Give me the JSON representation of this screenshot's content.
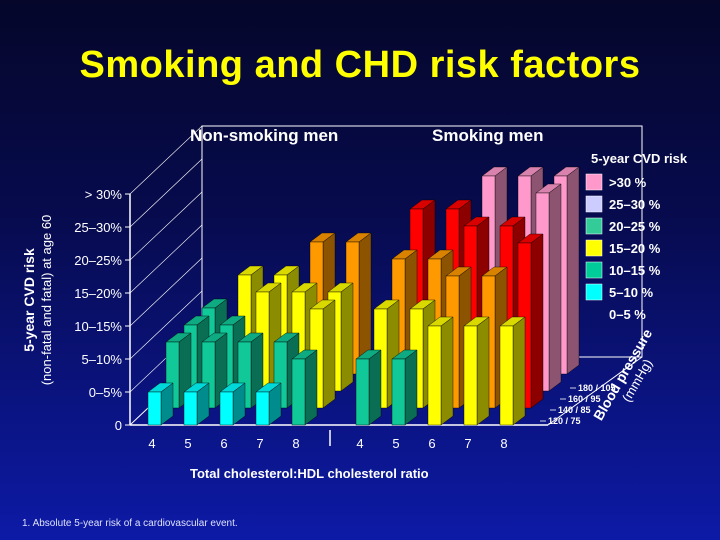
{
  "slide": {
    "title": "Smoking and CHD risk factors",
    "footnote": "1. Absolute 5-year risk of a cardiovascular event."
  },
  "chart_data": {
    "type": "bar",
    "title": "",
    "groups": [
      "Non-smoking men",
      "Smoking men"
    ],
    "xlabel": "Total cholesterol:HDL cholesterol ratio",
    "ylabel": "5-year CVD risk",
    "ylabel_sub": "(non-fatal and fatal) at age 60",
    "categories": [
      "4",
      "5",
      "6",
      "7",
      "8"
    ],
    "y_levels": [
      "0",
      "0–5%",
      "5–10%",
      "10–15%",
      "15–20%",
      "20–25%",
      "25–30%",
      "> 30%"
    ],
    "depth_axis_title": "Blood pressure",
    "depth_axis_unit": "(mmHg)",
    "depth_levels": [
      "120 / 75",
      "140 / 85",
      "160 / 95",
      "180 / 105"
    ],
    "legend": {
      "title": "5-year CVD risk",
      "position": "right",
      "items": [
        {
          "label": ">30 %",
          "color": "#ff99cc",
          "level": 7
        },
        {
          "label": "25–30 %",
          "color": "#ccccff",
          "level": 6
        },
        {
          "label": "20–25 %",
          "color": "#33cc99",
          "level": 5
        },
        {
          "label": "15–20 %",
          "color": "#ffff00",
          "level": 4
        },
        {
          "label": "10–15 %",
          "color": "#00cc99",
          "level": 3
        },
        {
          "label": "5–10 %",
          "color": "#00ffff",
          "level": 2
        },
        {
          "label": "0–5 %",
          "color": "",
          "level": 1
        }
      ]
    },
    "level_colors": {
      "2": "#00ffff",
      "3": "#10c898",
      "4": "#ffff00",
      "5": "#ff9900",
      "6": "#ff0000",
      "7": "#ff99cc"
    },
    "series": [
      {
        "group": "Non-smoking men",
        "bp": "120 / 75",
        "values": [
          2,
          2,
          2,
          2,
          3
        ]
      },
      {
        "group": "Non-smoking men",
        "bp": "140 / 85",
        "values": [
          3,
          3,
          3,
          3,
          4
        ]
      },
      {
        "group": "Non-smoking men",
        "bp": "160 / 95",
        "values": [
          3,
          3,
          4,
          4,
          4
        ]
      },
      {
        "group": "Non-smoking men",
        "bp": "180 / 105",
        "values": [
          3,
          4,
          4,
          5,
          5
        ]
      },
      {
        "group": "Smoking men",
        "bp": "120 / 75",
        "values": [
          3,
          3,
          4,
          4,
          4
        ]
      },
      {
        "group": "Smoking men",
        "bp": "140 / 85",
        "values": [
          4,
          4,
          5,
          5,
          6
        ]
      },
      {
        "group": "Smoking men",
        "bp": "160 / 95",
        "values": [
          5,
          5,
          6,
          6,
          7
        ]
      },
      {
        "group": "Smoking men",
        "bp": "180 / 105",
        "values": [
          6,
          6,
          7,
          7,
          7
        ]
      }
    ],
    "grid": true
  }
}
